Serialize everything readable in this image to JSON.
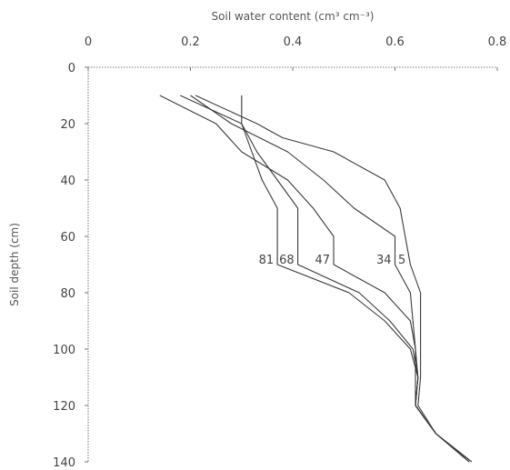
{
  "chart_data": {
    "type": "line",
    "title": "",
    "xlabel": "Soil water content (cm³ cm⁻³)",
    "ylabel": "Soil depth (cm)",
    "x_axis_position": "top",
    "y_axis_inverted": true,
    "xlim": [
      0,
      0.8
    ],
    "ylim": [
      0,
      140
    ],
    "xticks": [
      0,
      0.2,
      0.4,
      0.6,
      0.8
    ],
    "xtick_labels": [
      "0",
      "0.2",
      "0.4",
      "0.6",
      "0.8"
    ],
    "yticks": [
      0,
      20,
      40,
      60,
      80,
      100,
      120,
      140
    ],
    "ytick_labels": [
      "0",
      "20",
      "40",
      "60",
      "80",
      "100",
      "120",
      "140"
    ],
    "grid": false,
    "legend": "none",
    "series": [
      {
        "name": "81",
        "points": [
          [
            0.3,
            10
          ],
          [
            0.3,
            20
          ],
          [
            0.32,
            30
          ],
          [
            0.34,
            40
          ],
          [
            0.37,
            50
          ],
          [
            0.37,
            70
          ],
          [
            0.51,
            80
          ],
          [
            0.58,
            90
          ],
          [
            0.63,
            100
          ],
          [
            0.645,
            110
          ],
          [
            0.64,
            120
          ],
          [
            0.68,
            130
          ],
          [
            0.75,
            140
          ]
        ]
      },
      {
        "name": "68",
        "points": [
          [
            0.18,
            10
          ],
          [
            0.3,
            20
          ],
          [
            0.33,
            30
          ],
          [
            0.37,
            40
          ],
          [
            0.41,
            50
          ],
          [
            0.41,
            70
          ],
          [
            0.53,
            80
          ],
          [
            0.59,
            90
          ],
          [
            0.635,
            100
          ],
          [
            0.645,
            110
          ],
          [
            0.64,
            120
          ],
          [
            0.68,
            130
          ],
          [
            0.745,
            140
          ]
        ]
      },
      {
        "name": "47",
        "points": [
          [
            0.14,
            10
          ],
          [
            0.25,
            20
          ],
          [
            0.3,
            30
          ],
          [
            0.39,
            40
          ],
          [
            0.44,
            50
          ],
          [
            0.48,
            60
          ],
          [
            0.48,
            70
          ],
          [
            0.58,
            80
          ],
          [
            0.63,
            90
          ],
          [
            0.64,
            100
          ],
          [
            0.64,
            110
          ],
          [
            0.64,
            120
          ],
          [
            0.68,
            130
          ],
          [
            0.745,
            140
          ]
        ]
      },
      {
        "name": "34",
        "points": [
          [
            0.2,
            10
          ],
          [
            0.28,
            20
          ],
          [
            0.39,
            30
          ],
          [
            0.46,
            40
          ],
          [
            0.52,
            50
          ],
          [
            0.6,
            60
          ],
          [
            0.6,
            70
          ],
          [
            0.63,
            80
          ],
          [
            0.635,
            90
          ],
          [
            0.64,
            100
          ],
          [
            0.645,
            110
          ],
          [
            0.64,
            120
          ],
          [
            0.68,
            130
          ],
          [
            0.745,
            140
          ]
        ]
      },
      {
        "name": "5",
        "points": [
          [
            0.21,
            10
          ],
          [
            0.33,
            20
          ],
          [
            0.38,
            25
          ],
          [
            0.48,
            30
          ],
          [
            0.58,
            40
          ],
          [
            0.61,
            50
          ],
          [
            0.62,
            60
          ],
          [
            0.63,
            70
          ],
          [
            0.65,
            80
          ],
          [
            0.65,
            90
          ],
          [
            0.65,
            100
          ],
          [
            0.65,
            110
          ],
          [
            0.645,
            120
          ],
          [
            0.68,
            130
          ],
          [
            0.75,
            140
          ]
        ]
      }
    ],
    "series_labels_depth": 68
  }
}
